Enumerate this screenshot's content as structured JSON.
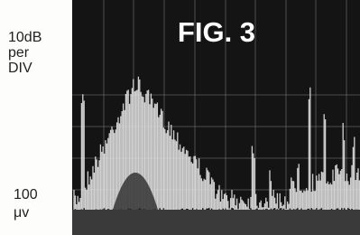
{
  "figure": {
    "title": "FIG. 3",
    "scale_label": [
      "10dB",
      "per",
      "DIV"
    ],
    "reference_label": [
      "100",
      "μv"
    ]
  }
}
